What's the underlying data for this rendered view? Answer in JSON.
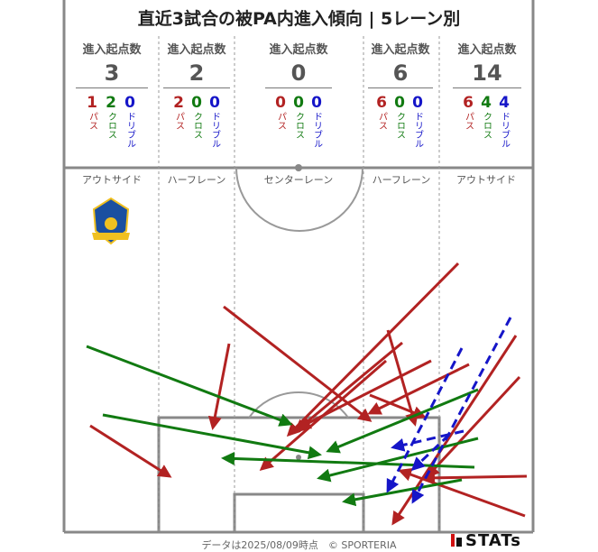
{
  "title": "直近3試合の被PA内進入傾向 | 5レーン別",
  "lanes": [
    {
      "header": "進入起点数",
      "total": "3",
      "name": "アウトサイド",
      "breakdown": [
        {
          "num": "1",
          "label": "パス"
        },
        {
          "num": "2",
          "label": "クロス"
        },
        {
          "num": "0",
          "label": "ドリブル"
        }
      ]
    },
    {
      "header": "進入起点数",
      "total": "2",
      "name": "ハーフレーン",
      "breakdown": [
        {
          "num": "2",
          "label": "パス"
        },
        {
          "num": "0",
          "label": "クロス"
        },
        {
          "num": "0",
          "label": "ドリブル"
        }
      ]
    },
    {
      "header": "進入起点数",
      "total": "0",
      "name": "センターレーン",
      "breakdown": [
        {
          "num": "0",
          "label": "パス"
        },
        {
          "num": "0",
          "label": "クロス"
        },
        {
          "num": "0",
          "label": "ドリブル"
        }
      ]
    },
    {
      "header": "進入起点数",
      "total": "6",
      "name": "ハーフレーン",
      "breakdown": [
        {
          "num": "6",
          "label": "パス"
        },
        {
          "num": "0",
          "label": "クロス"
        },
        {
          "num": "0",
          "label": "ドリブル"
        }
      ]
    },
    {
      "header": "進入起点数",
      "total": "14",
      "name": "アウトサイド",
      "breakdown": [
        {
          "num": "6",
          "label": "パス"
        },
        {
          "num": "4",
          "label": "クロス"
        },
        {
          "num": "4",
          "label": "ドリブル"
        }
      ]
    }
  ],
  "colors": {
    "pass": "#b22222",
    "cross": "#117a11",
    "dribble": "#1515c8"
  },
  "team_logo": "shield-crest-icon",
  "footer": {
    "note": "データは2025/08/09時点　© SPORTERIA",
    "brand": "STATs"
  }
}
